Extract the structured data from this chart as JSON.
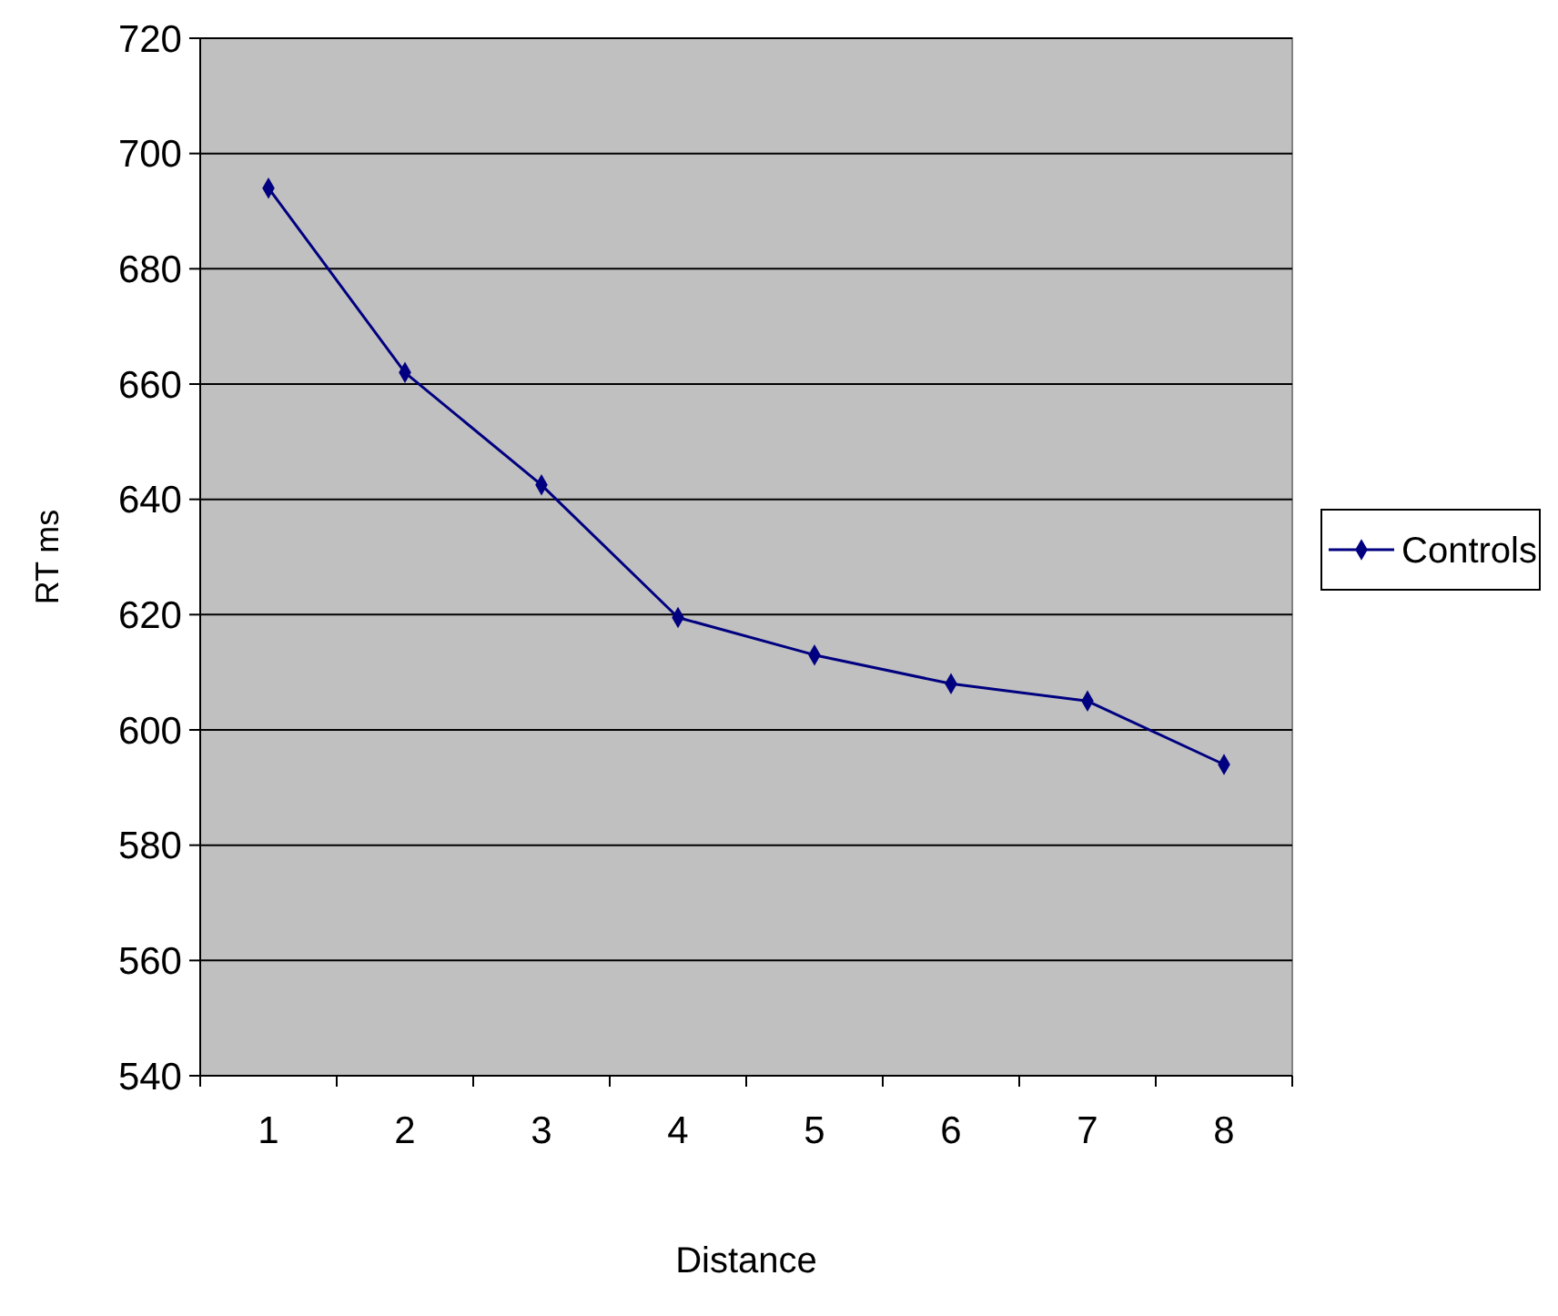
{
  "chart_data": {
    "type": "line",
    "xlabel": "Distance",
    "ylabel": "RT ms",
    "categories": [
      "1",
      "2",
      "3",
      "4",
      "5",
      "6",
      "7",
      "8"
    ],
    "series": [
      {
        "name": "Controls",
        "color": "#000080",
        "values": [
          694,
          662,
          642.5,
          619.5,
          613,
          608,
          605,
          594
        ]
      }
    ],
    "ylim": [
      540,
      720
    ],
    "yticks": [
      540,
      560,
      580,
      600,
      620,
      640,
      660,
      680,
      700,
      720
    ],
    "grid": "y",
    "legend": "right",
    "marker": "diamond",
    "line_style": "solid"
  }
}
